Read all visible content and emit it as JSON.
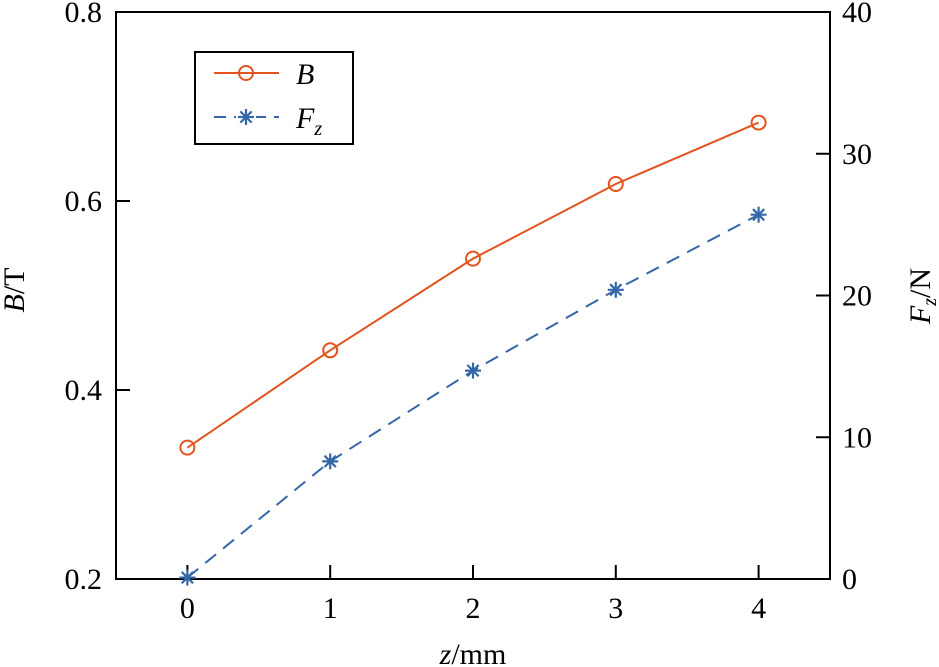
{
  "chart_data": {
    "type": "line",
    "title": "",
    "x": [
      0,
      1,
      2,
      3,
      4
    ],
    "xlabel": "z/mm",
    "xlabel_italic_part": "z",
    "xlabel_unit_part": "/mm",
    "xlim": [
      -0.5,
      4.5
    ],
    "xticks": [
      "0",
      "1",
      "2",
      "3",
      "4"
    ],
    "ylabel_left": "B/T",
    "ylabel_left_italic_part": "B",
    "ylabel_left_unit_part": "/T",
    "ylim_left": [
      0.2,
      0.8
    ],
    "yticks_left": [
      "0.2",
      "0.4",
      "0.6",
      "0.8"
    ],
    "ylabel_right": "Fz/N",
    "ylabel_right_italic_part": "F",
    "ylabel_right_subscript": "z",
    "ylabel_right_unit_part": "/N",
    "ylim_right": [
      0,
      40
    ],
    "yticks_right": [
      "0",
      "10",
      "20",
      "30",
      "40"
    ],
    "grid": false,
    "legend_position": "upper left",
    "series": [
      {
        "name": "B",
        "axis": "left",
        "values": [
          0.339,
          0.442,
          0.539,
          0.618,
          0.683
        ],
        "color": "#E2531D",
        "marker": "circle",
        "linestyle": "solid"
      },
      {
        "name": "Fz",
        "axis": "right",
        "values": [
          0.1,
          8.3,
          14.7,
          20.4,
          25.7
        ],
        "color": "#3466A8",
        "marker": "asterisk",
        "linestyle": "dashed"
      }
    ]
  },
  "legend": {
    "items": [
      {
        "label": "B",
        "subscript": ""
      },
      {
        "label": "F",
        "subscript": "z"
      }
    ]
  },
  "colors": {
    "b_series": "#E2531D",
    "fz_series": "#3466A8",
    "axis": "#000000"
  }
}
